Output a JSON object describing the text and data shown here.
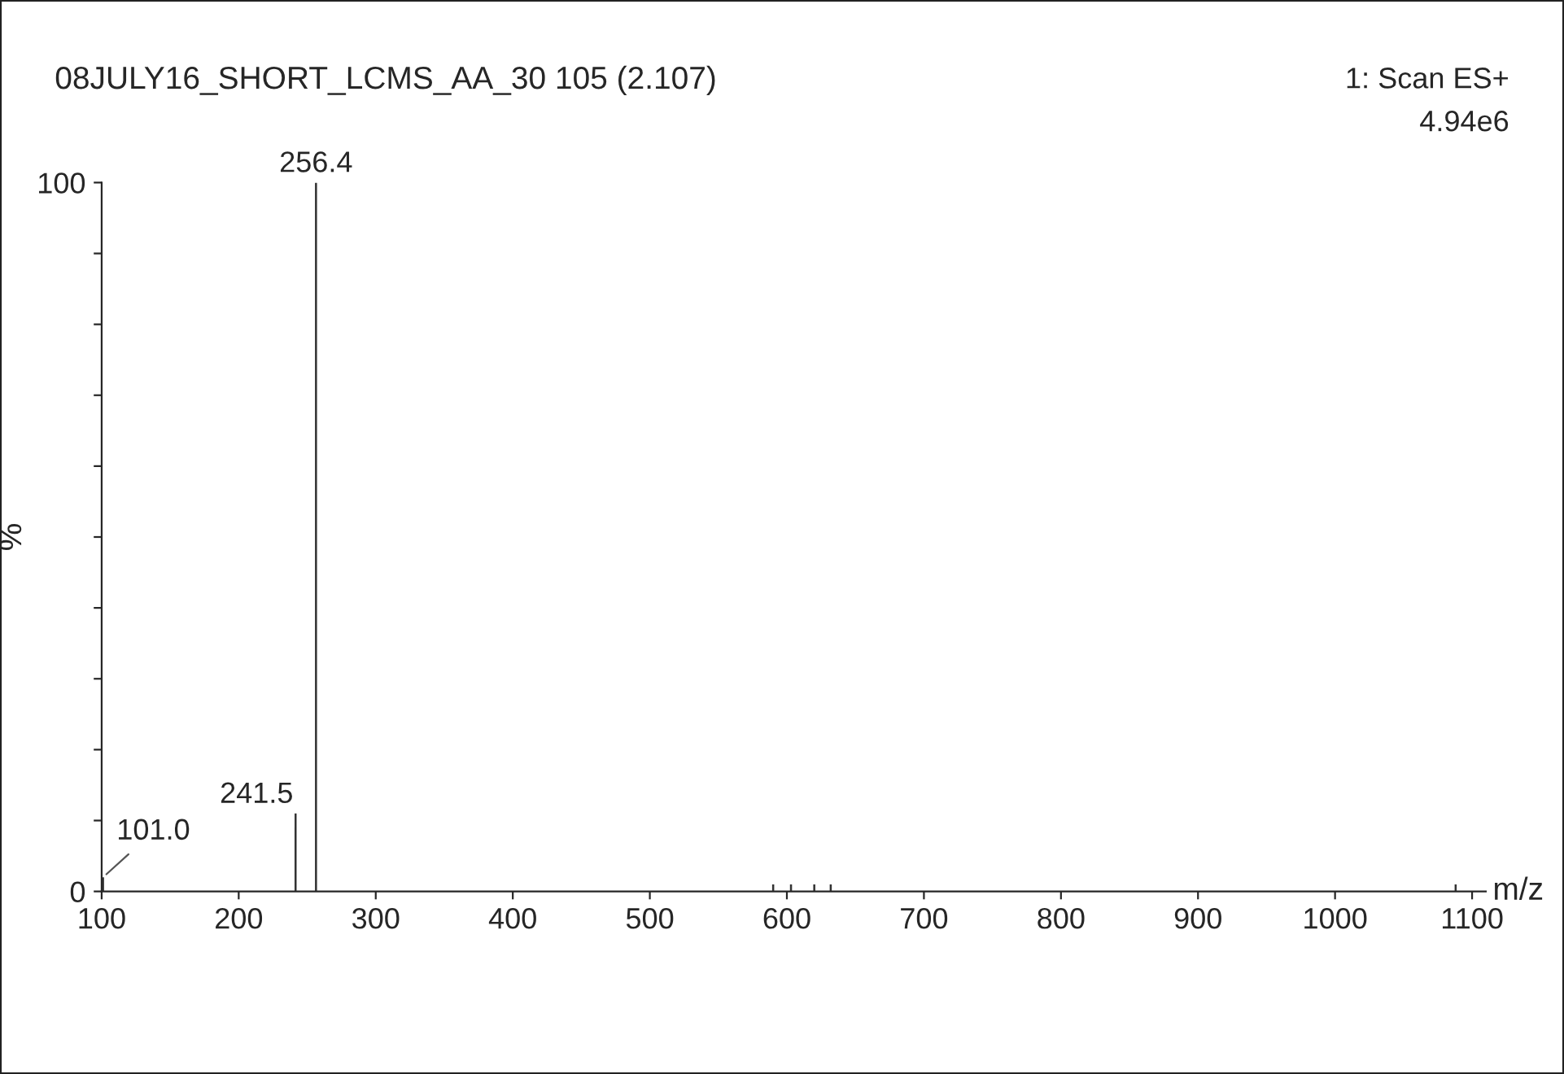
{
  "chart_data": {
    "type": "bar",
    "title": "08JULY16_SHORT_LCMS_AA_30 105 (2.107)",
    "annotations": [
      "1: Scan ES+",
      "4.94e6",
      {
        "text": "101.0",
        "x": 101.0,
        "y": 2
      },
      {
        "text": "241.5",
        "x": 241.5,
        "y": 11
      },
      {
        "text": "256.4",
        "x": 256.4,
        "y": 100
      }
    ],
    "xlabel": "m/z",
    "ylabel": "%",
    "x": [
      101.0,
      241.5,
      256.4,
      590,
      603,
      620,
      632,
      1088
    ],
    "values": [
      2,
      11,
      100,
      1,
      1,
      1,
      1,
      1
    ],
    "color": "#333333",
    "xlim": [
      100,
      1110
    ],
    "xticks": [
      100,
      200,
      300,
      400,
      500,
      600,
      700,
      800,
      900,
      1000,
      1100
    ],
    "ylim": [
      0,
      100
    ],
    "yticks": [
      0,
      {
        "value": 10,
        "label": null
      },
      {
        "value": 20,
        "label": null
      },
      {
        "value": 30,
        "label": null
      },
      {
        "value": 40,
        "label": null
      },
      {
        "value": 50,
        "label": null
      },
      {
        "value": 60,
        "label": null
      },
      {
        "value": 70,
        "label": null
      },
      {
        "value": 80,
        "label": null
      },
      {
        "value": 90,
        "label": null
      },
      100
    ],
    "grid": false,
    "legend": false
  }
}
